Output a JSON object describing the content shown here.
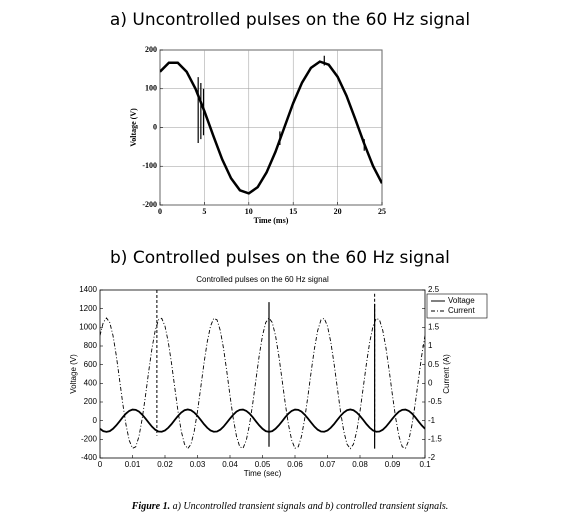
{
  "chart_data": [
    {
      "type": "line",
      "heading": "a) Uncontrolled pulses on the 60 Hz signal",
      "xlabel": "Time (ms)",
      "ylabel": "Voltage (V)",
      "x": [
        0,
        1,
        2,
        3,
        4,
        5,
        6,
        7,
        8,
        9,
        10,
        11,
        12,
        13,
        14,
        15,
        16,
        17,
        18,
        19,
        20,
        21,
        22,
        23,
        24,
        25
      ],
      "xlim": [
        0,
        25
      ],
      "xticks": [
        0,
        5,
        10,
        15,
        20,
        25
      ],
      "ylim": [
        -200,
        200
      ],
      "yticks": [
        -200,
        -100,
        0,
        100,
        200
      ],
      "grid": true,
      "series": [
        {
          "color": "#000000",
          "dash": "solid",
          "width": 2.5,
          "values": [
            144,
            167,
            167,
            144,
            100,
            42,
            -21,
            -82,
            -131,
            -162,
            -170,
            -154,
            -116,
            -63,
            0,
            63,
            116,
            154,
            170,
            162,
            131,
            82,
            21,
            -42,
            -100,
            -144
          ]
        },
        {
          "color": "#000000",
          "dash": "solid",
          "width": 1.2,
          "x": [
            4.3,
            4.3,
            4.3,
            4.6,
            4.6,
            4.6,
            4.9,
            4.9,
            4.9,
            13.5,
            13.5,
            13.5,
            18.5,
            18.5,
            18.5,
            23,
            23
          ],
          "values": [
            130,
            -40,
            null,
            115,
            -30,
            null,
            100,
            -20,
            null,
            -45,
            -10,
            null,
            185,
            160,
            null,
            -30,
            -60
          ]
        }
      ]
    },
    {
      "type": "line",
      "heading": "b) Controlled pulses on the 60 Hz signal",
      "title": "Controlled pulses on the 60 Hz signal",
      "xlabel": "Time (sec)",
      "ylabel": "Voltage (V)",
      "y2label": "Current (A)",
      "x": [
        0,
        0.001,
        0.002,
        0.003,
        0.004,
        0.005,
        0.006,
        0.007,
        0.008,
        0.009,
        0.01,
        0.011,
        0.012,
        0.013,
        0.014,
        0.015,
        0.016,
        0.017,
        0.018,
        0.019,
        0.02,
        0.021,
        0.022,
        0.023,
        0.024,
        0.025,
        0.026,
        0.027,
        0.028,
        0.029,
        0.03,
        0.031,
        0.032,
        0.033,
        0.034,
        0.035,
        0.036,
        0.037,
        0.038,
        0.039,
        0.04,
        0.041,
        0.042,
        0.043,
        0.044,
        0.045,
        0.046,
        0.047,
        0.048,
        0.049,
        0.05,
        0.051,
        0.052,
        0.053,
        0.054,
        0.055,
        0.056,
        0.057,
        0.058,
        0.059,
        0.06,
        0.061,
        0.062,
        0.063,
        0.064,
        0.065,
        0.066,
        0.067,
        0.068,
        0.069,
        0.07,
        0.071,
        0.072,
        0.073,
        0.074,
        0.075,
        0.076,
        0.077,
        0.078,
        0.079,
        0.08,
        0.081,
        0.082,
        0.083,
        0.084,
        0.085,
        0.086,
        0.087,
        0.088,
        0.089,
        0.09,
        0.091,
        0.092,
        0.093,
        0.094,
        0.095,
        0.096,
        0.097,
        0.098,
        0.099,
        0.1
      ],
      "xlim": [
        0,
        0.1
      ],
      "xticks": [
        0,
        0.01,
        0.02,
        0.03,
        0.04,
        0.05,
        0.06,
        0.07,
        0.08,
        0.09,
        0.1
      ],
      "ylim": [
        -400,
        1400
      ],
      "yticks": [
        -400,
        -200,
        0,
        200,
        400,
        600,
        800,
        1000,
        1200,
        1400
      ],
      "y2lim": [
        -2,
        2.5
      ],
      "y2ticks": [
        -2,
        -1.5,
        -1,
        -0.5,
        0,
        0.5,
        1,
        1.5,
        2,
        2.5
      ],
      "grid": false,
      "legend": "upper right",
      "series": [
        {
          "name": "Voltage",
          "color": "#000000",
          "dash": "solid",
          "width": 1.8,
          "values": [
            -87,
            -112,
            -120,
            -112,
            -87,
            -51,
            -8,
            37,
            76,
            105,
            119,
            116,
            97,
            64,
            22,
            -22,
            -64,
            -97,
            -116,
            -119,
            -105,
            -76,
            -37,
            8,
            51,
            87,
            112,
            120,
            112,
            87,
            51,
            8,
            -37,
            -76,
            -105,
            -119,
            -116,
            -97,
            -64,
            -22,
            22,
            64,
            97,
            116,
            119,
            105,
            76,
            37,
            -8,
            -51,
            -87,
            -112,
            -120,
            -112,
            -87,
            -51,
            -8,
            37,
            76,
            105,
            119,
            116,
            97,
            64,
            22,
            -22,
            -64,
            -97,
            -116,
            -119,
            -105,
            -76,
            -37,
            8,
            51,
            87,
            112,
            120,
            112,
            87,
            51,
            8,
            -37,
            -76,
            -105,
            -119,
            -116,
            -97,
            -64,
            -22,
            22,
            64,
            97,
            116,
            119,
            105,
            76,
            37,
            -8,
            -51,
            -87
          ]
        },
        {
          "name": "Current",
          "color": "#000000",
          "dash": "dashdot",
          "width": 0.9,
          "axis": "y2",
          "values": [
            1.28,
            1.63,
            1.75,
            1.63,
            1.28,
            0.75,
            0.11,
            -0.54,
            -1.11,
            -1.53,
            -1.74,
            -1.7,
            -1.42,
            -0.94,
            -0.33,
            0.33,
            0.94,
            1.42,
            1.7,
            1.74,
            1.53,
            1.11,
            0.54,
            -0.11,
            -0.75,
            -1.28,
            -1.63,
            -1.75,
            -1.63,
            -1.28,
            -0.75,
            -0.11,
            0.54,
            1.11,
            1.53,
            1.74,
            1.7,
            1.42,
            0.94,
            0.33,
            -0.33,
            -0.94,
            -1.42,
            -1.7,
            -1.74,
            -1.53,
            -1.11,
            -0.54,
            0.11,
            0.75,
            1.28,
            1.63,
            1.75,
            1.63,
            1.28,
            0.75,
            0.11,
            -0.54,
            -1.11,
            -1.53,
            -1.74,
            -1.7,
            -1.42,
            -0.94,
            -0.33,
            0.33,
            0.94,
            1.42,
            1.7,
            1.74,
            1.53,
            1.11,
            0.54,
            -0.11,
            -0.75,
            -1.28,
            -1.63,
            -1.75,
            -1.63,
            -1.28,
            -0.75,
            -0.11,
            0.54,
            1.11,
            1.53,
            1.74,
            1.7,
            1.42,
            0.94,
            0.33,
            -0.33,
            -0.94,
            -1.42,
            -1.7,
            -1.74,
            -1.53,
            -1.11,
            -0.54,
            0.11,
            0.75,
            1.28
          ]
        },
        {
          "color": "#000000",
          "dash": "solid",
          "width": 1.2,
          "x": [
            0.052,
            0.052,
            0.052,
            0.0845,
            0.0845
          ],
          "values": [
            -280,
            1270,
            null,
            1250,
            -300
          ]
        },
        {
          "color": "#000000",
          "dash": "dashed",
          "width": 1,
          "axis": "y2",
          "x": [
            0.0175,
            0.0175,
            0.0175,
            0.0845,
            0.0845
          ],
          "values": [
            2.5,
            -1.4,
            null,
            2.4,
            -1.5
          ]
        }
      ]
    }
  ],
  "caption": {
    "label": "Figure 1.",
    "text": "a) Uncontrolled transient signals and b) controlled transient signals."
  }
}
